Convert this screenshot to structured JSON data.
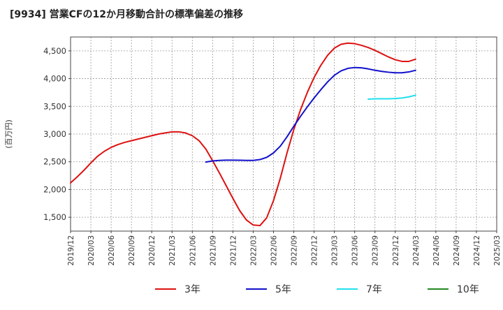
{
  "chart_data": {
    "type": "line",
    "title": "[9934]  営業CFの12か月移動合計の標準偏差の推移",
    "ylabel": "(百万円)",
    "xlabel": "",
    "ylim": [
      1250,
      4750
    ],
    "yticks": [
      1500,
      2000,
      2500,
      3000,
      3500,
      4000,
      4500
    ],
    "ytick_labels": [
      "1,500",
      "2,000",
      "2,500",
      "3,000",
      "3,500",
      "4,000",
      "4,500"
    ],
    "xticks": [
      "2019/12",
      "2020/03",
      "2020/06",
      "2020/09",
      "2020/12",
      "2021/03",
      "2021/06",
      "2021/09",
      "2021/12",
      "2022/03",
      "2022/06",
      "2022/09",
      "2022/12",
      "2023/03",
      "2023/06",
      "2023/09",
      "2023/12",
      "2024/03",
      "2024/06",
      "2024/09",
      "2024/12",
      "2025/03"
    ],
    "grid": true,
    "legend_position": "bottom",
    "series": [
      {
        "name": "3年",
        "color": "#dd1111",
        "points": [
          [
            "2019/12",
            2120
          ],
          [
            "2020/01",
            2230
          ],
          [
            "2020/02",
            2350
          ],
          [
            "2020/03",
            2480
          ],
          [
            "2020/04",
            2600
          ],
          [
            "2020/05",
            2690
          ],
          [
            "2020/06",
            2760
          ],
          [
            "2020/07",
            2810
          ],
          [
            "2020/08",
            2850
          ],
          [
            "2020/09",
            2880
          ],
          [
            "2020/10",
            2910
          ],
          [
            "2020/11",
            2940
          ],
          [
            "2020/12",
            2970
          ],
          [
            "2021/01",
            3000
          ],
          [
            "2021/02",
            3020
          ],
          [
            "2021/03",
            3040
          ],
          [
            "2021/04",
            3040
          ],
          [
            "2021/05",
            3020
          ],
          [
            "2021/06",
            2970
          ],
          [
            "2021/07",
            2880
          ],
          [
            "2021/08",
            2730
          ],
          [
            "2021/09",
            2520
          ],
          [
            "2021/10",
            2300
          ],
          [
            "2021/11",
            2070
          ],
          [
            "2021/12",
            1840
          ],
          [
            "2022/01",
            1620
          ],
          [
            "2022/02",
            1450
          ],
          [
            "2022/03",
            1360
          ],
          [
            "2022/04",
            1350
          ],
          [
            "2022/05",
            1490
          ],
          [
            "2022/06",
            1800
          ],
          [
            "2022/07",
            2200
          ],
          [
            "2022/08",
            2660
          ],
          [
            "2022/09",
            3080
          ],
          [
            "2022/10",
            3440
          ],
          [
            "2022/11",
            3750
          ],
          [
            "2022/12",
            4020
          ],
          [
            "2023/01",
            4240
          ],
          [
            "2023/02",
            4420
          ],
          [
            "2023/03",
            4550
          ],
          [
            "2023/04",
            4620
          ],
          [
            "2023/05",
            4640
          ],
          [
            "2023/06",
            4630
          ],
          [
            "2023/07",
            4600
          ],
          [
            "2023/08",
            4560
          ],
          [
            "2023/09",
            4510
          ],
          [
            "2023/10",
            4450
          ],
          [
            "2023/11",
            4390
          ],
          [
            "2023/12",
            4340
          ],
          [
            "2024/01",
            4310
          ],
          [
            "2024/02",
            4310
          ],
          [
            "2024/03",
            4350
          ]
        ]
      },
      {
        "name": "5年",
        "color": "#1111cc",
        "points": [
          [
            "2021/08",
            2495
          ],
          [
            "2021/09",
            2515
          ],
          [
            "2021/10",
            2525
          ],
          [
            "2021/11",
            2530
          ],
          [
            "2021/12",
            2530
          ],
          [
            "2022/01",
            2528
          ],
          [
            "2022/02",
            2525
          ],
          [
            "2022/03",
            2525
          ],
          [
            "2022/04",
            2540
          ],
          [
            "2022/05",
            2580
          ],
          [
            "2022/06",
            2660
          ],
          [
            "2022/07",
            2780
          ],
          [
            "2022/08",
            2950
          ],
          [
            "2022/09",
            3140
          ],
          [
            "2022/10",
            3320
          ],
          [
            "2022/11",
            3490
          ],
          [
            "2022/12",
            3650
          ],
          [
            "2023/01",
            3800
          ],
          [
            "2023/02",
            3940
          ],
          [
            "2023/03",
            4060
          ],
          [
            "2023/04",
            4140
          ],
          [
            "2023/05",
            4185
          ],
          [
            "2023/06",
            4200
          ],
          [
            "2023/07",
            4195
          ],
          [
            "2023/08",
            4175
          ],
          [
            "2023/09",
            4150
          ],
          [
            "2023/10",
            4130
          ],
          [
            "2023/11",
            4115
          ],
          [
            "2023/12",
            4105
          ],
          [
            "2024/01",
            4105
          ],
          [
            "2024/02",
            4120
          ],
          [
            "2024/03",
            4150
          ]
        ]
      },
      {
        "name": "7年",
        "color": "#22e0ee",
        "points": [
          [
            "2023/08",
            3630
          ],
          [
            "2023/09",
            3635
          ],
          [
            "2023/10",
            3635
          ],
          [
            "2023/11",
            3635
          ],
          [
            "2023/12",
            3640
          ],
          [
            "2024/01",
            3650
          ],
          [
            "2024/02",
            3670
          ],
          [
            "2024/03",
            3700
          ]
        ]
      },
      {
        "name": "10年",
        "color": "#228822",
        "points": []
      }
    ]
  }
}
